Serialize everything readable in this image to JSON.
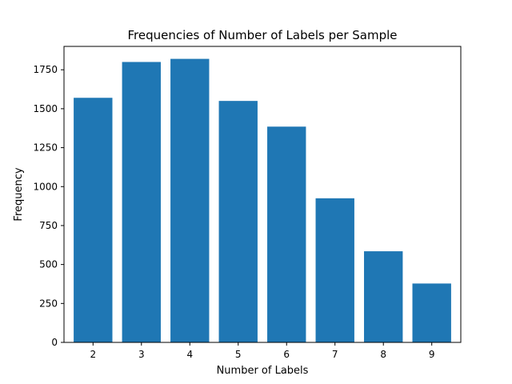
{
  "chart_data": {
    "type": "bar",
    "title": "Frequencies of Number of Labels per Sample",
    "xlabel": "Number of Labels",
    "ylabel": "Frequency",
    "categories": [
      "2",
      "3",
      "4",
      "5",
      "6",
      "7",
      "8",
      "9"
    ],
    "values": [
      1570,
      1800,
      1820,
      1550,
      1385,
      925,
      585,
      378
    ],
    "ylim": [
      0,
      1900
    ],
    "yticks": [
      0,
      250,
      500,
      750,
      1000,
      1250,
      1500,
      1750
    ],
    "ytick_labels": [
      "0",
      "250",
      "500",
      "750",
      "1000",
      "1250",
      "1500",
      "1750"
    ],
    "bar_color": "#1f77b4",
    "grid": false,
    "legend": "none"
  }
}
